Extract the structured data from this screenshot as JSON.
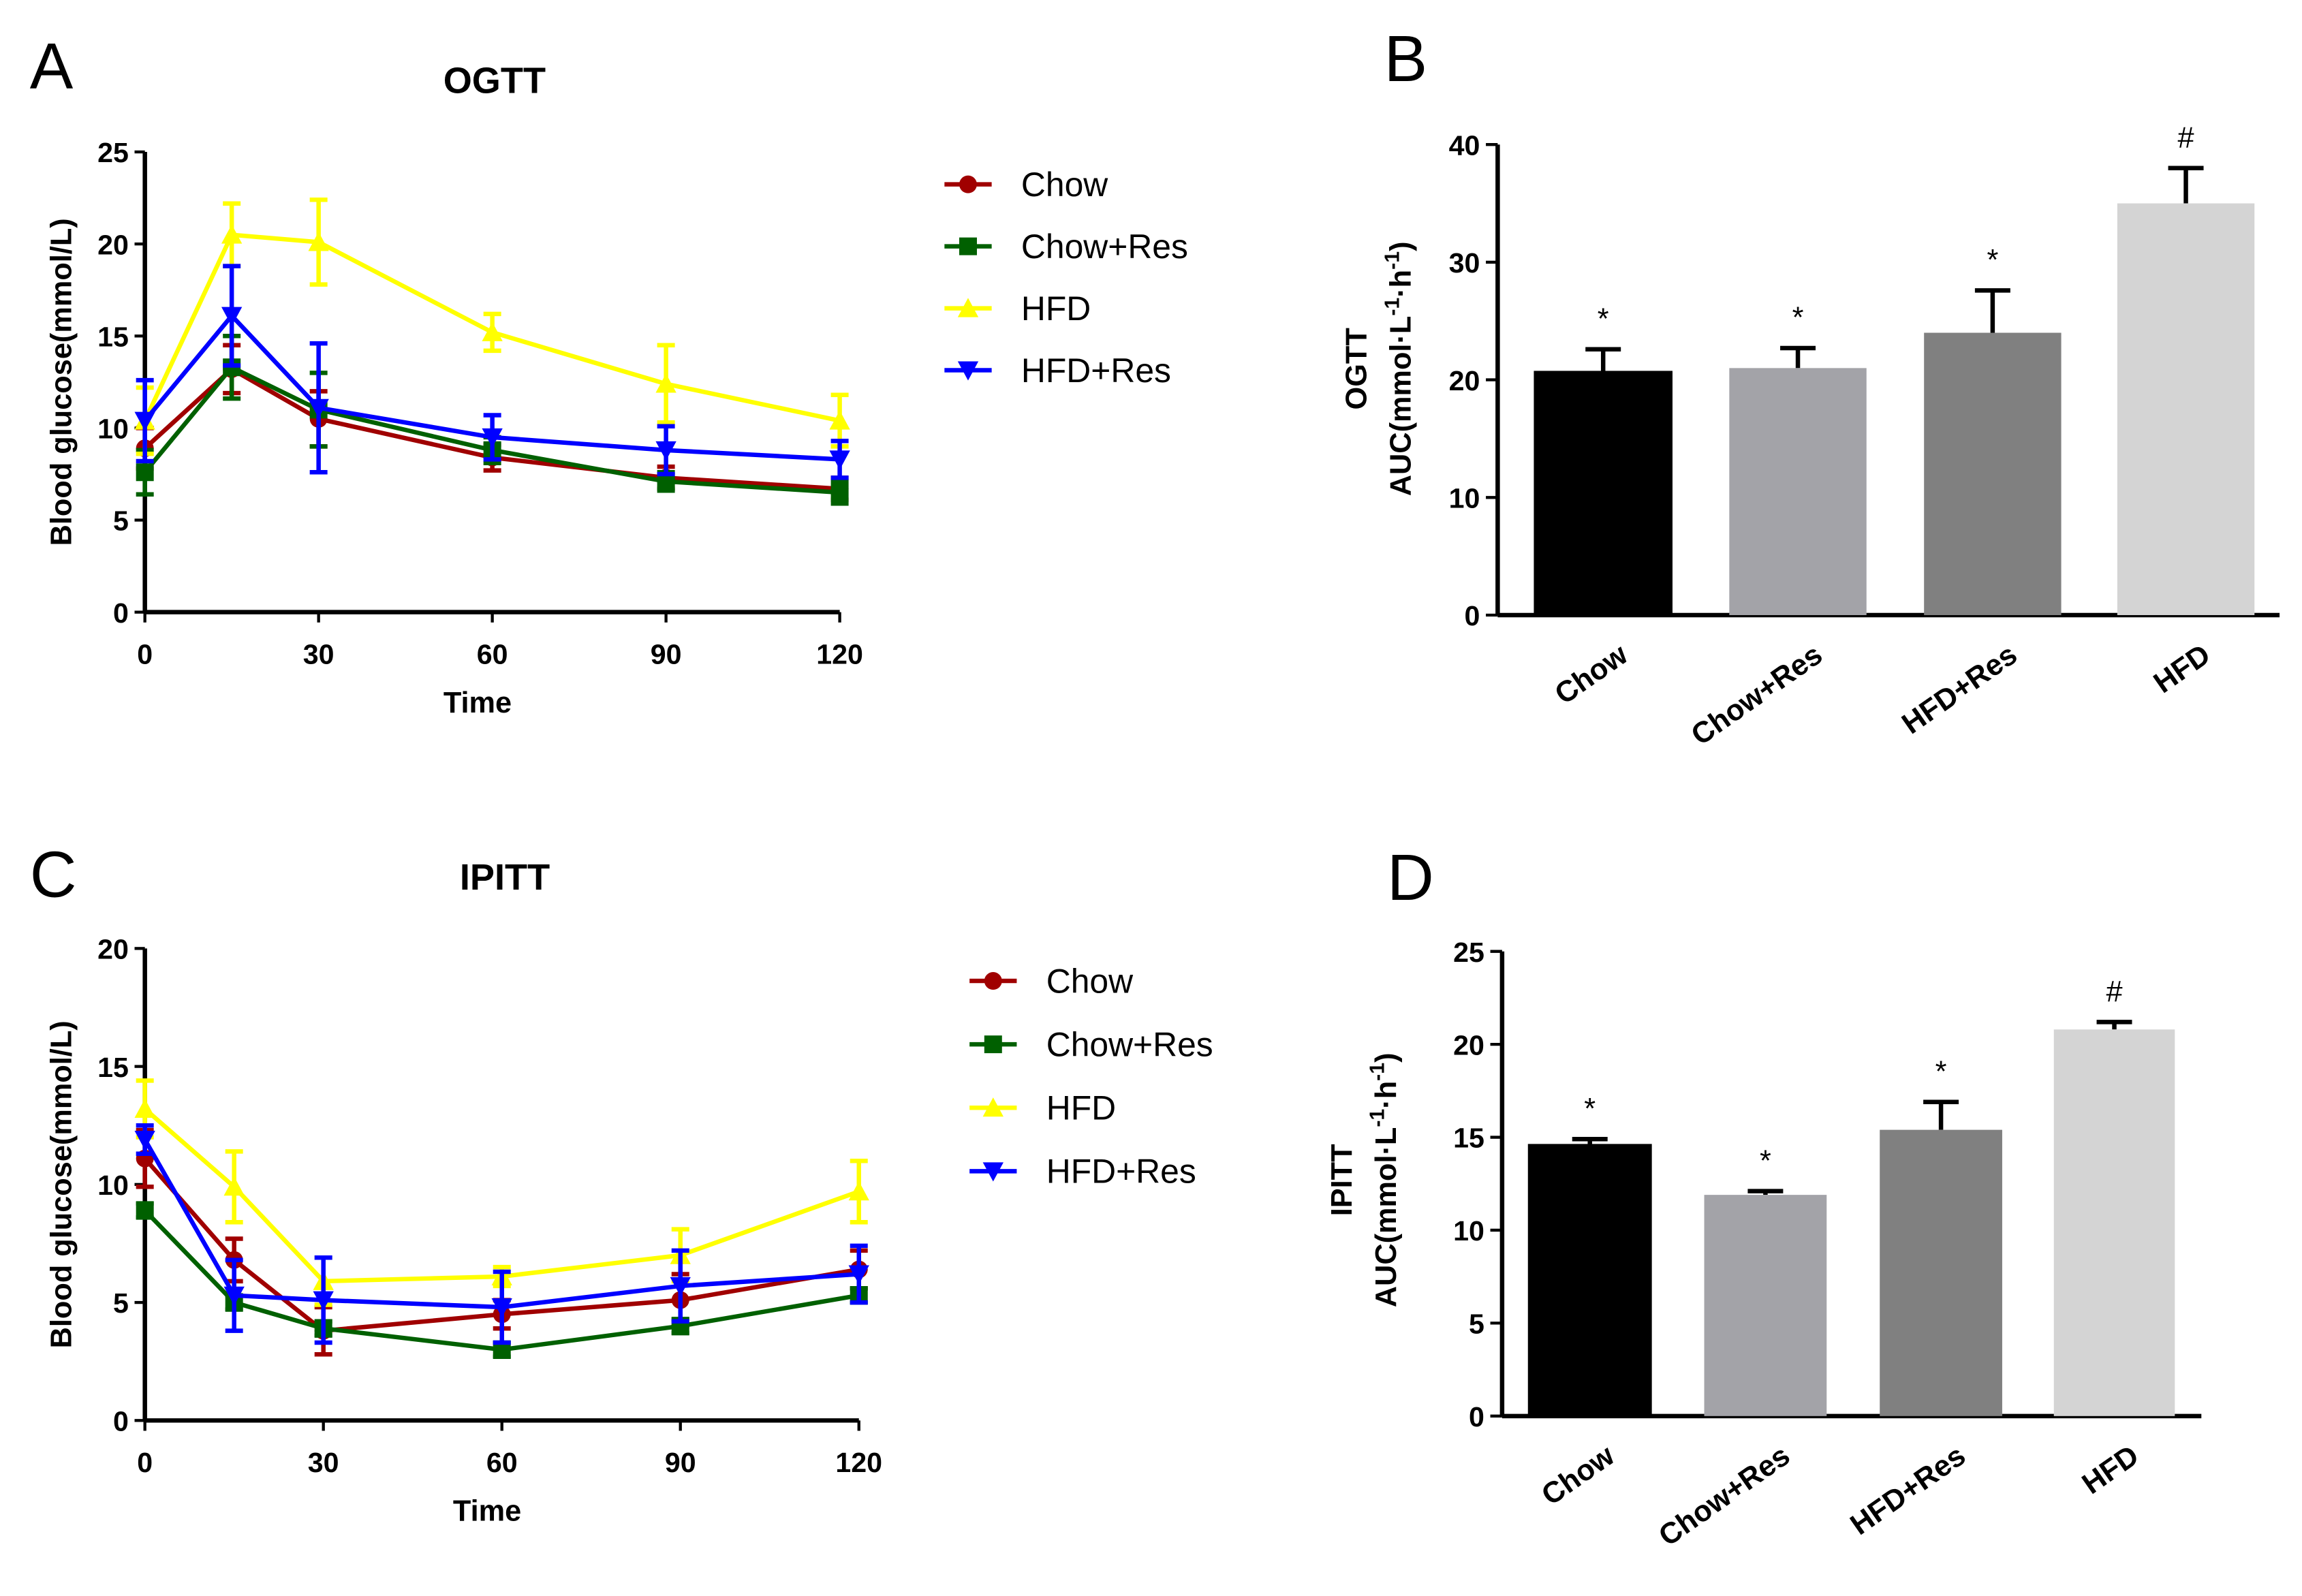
{
  "chart_data": [
    {
      "panel": "A",
      "type": "line",
      "title": "OGTT",
      "xlabel": "Time",
      "ylabel": "Blood glucose(mmol/L)",
      "x": [
        0,
        15,
        30,
        60,
        90,
        120
      ],
      "xticks": [
        0,
        30,
        60,
        90,
        120
      ],
      "yticks": [
        0,
        5,
        10,
        15,
        20,
        25
      ],
      "ylim": [
        0,
        25
      ],
      "xlim": [
        0,
        120
      ],
      "legend_position": "right",
      "series": [
        {
          "name": "Chow",
          "color": "#a00000",
          "marker": "circle",
          "values": [
            8.9,
            13.2,
            10.5,
            8.4,
            7.3,
            6.7
          ],
          "errors": [
            1.1,
            1.3,
            1.5,
            0.7,
            0.6,
            0.6
          ]
        },
        {
          "name": "Chow+Res",
          "color": "#006000",
          "marker": "square",
          "values": [
            7.6,
            13.3,
            11.0,
            8.8,
            7.1,
            6.5
          ],
          "errors": [
            1.2,
            1.7,
            2.0,
            0.7,
            0.5,
            0.6
          ]
        },
        {
          "name": "HFD",
          "color": "#ffff00",
          "marker": "triangle-up",
          "values": [
            10.4,
            20.5,
            20.1,
            15.2,
            12.4,
            10.4
          ],
          "errors": [
            1.8,
            1.7,
            2.3,
            1.0,
            2.1,
            1.4
          ]
        },
        {
          "name": "HFD+Res",
          "color": "#0000ff",
          "marker": "triangle-down",
          "values": [
            10.4,
            16.1,
            11.1,
            9.5,
            8.8,
            8.3
          ],
          "errors": [
            2.2,
            2.7,
            3.5,
            1.2,
            1.3,
            1.0
          ]
        }
      ]
    },
    {
      "panel": "B",
      "type": "bar",
      "title": "OGTT",
      "ylabel": "AUC(mmol·L-1·h-1)",
      "ylabel_main": "AUC(mmol·L",
      "ylabel_sup1": "-1",
      "ylabel_mid": "·h",
      "ylabel_sup2": "-1",
      "ylabel_end": ")",
      "categories": [
        "Chow",
        "Chow+Res",
        "HFD+Res",
        "HFD"
      ],
      "values": [
        20.7,
        21.0,
        24.0,
        35.0
      ],
      "errors": [
        1.9,
        1.7,
        3.6,
        3.0
      ],
      "annotations": [
        "*",
        "*",
        "*",
        "#"
      ],
      "colors": [
        "#000000",
        "#a3a3a8",
        "#808080",
        "#d4d4d4"
      ],
      "yticks": [
        0,
        10,
        20,
        30,
        40
      ],
      "ylim": [
        0,
        40
      ]
    },
    {
      "panel": "C",
      "type": "line",
      "title": "IPITT",
      "xlabel": "Time",
      "ylabel": "Blood glucose(mmol/L)",
      "x": [
        0,
        15,
        30,
        60,
        90,
        120
      ],
      "xticks": [
        0,
        30,
        60,
        90,
        120
      ],
      "yticks": [
        0,
        5,
        10,
        15,
        20
      ],
      "ylim": [
        0,
        20
      ],
      "xlim": [
        0,
        120
      ],
      "legend_position": "right",
      "series": [
        {
          "name": "Chow",
          "color": "#a00000",
          "marker": "circle",
          "values": [
            11.1,
            6.8,
            3.8,
            4.5,
            5.1,
            6.4
          ],
          "errors": [
            1.2,
            0.9,
            1.0,
            0.6,
            1.1,
            0.8
          ]
        },
        {
          "name": "Chow+Res",
          "color": "#006000",
          "marker": "square",
          "values": [
            8.9,
            5.0,
            3.9,
            3.0,
            4.0,
            5.3
          ],
          "errors": [
            0.3,
            0.3,
            0.3,
            0.3,
            0.3,
            0.3
          ]
        },
        {
          "name": "HFD",
          "color": "#ffff00",
          "marker": "triangle-up",
          "values": [
            13.2,
            9.9,
            5.9,
            6.1,
            7.0,
            9.7
          ],
          "errors": [
            1.2,
            1.5,
            1.0,
            0.4,
            1.1,
            1.3
          ]
        },
        {
          "name": "HFD+Res",
          "color": "#0000ff",
          "marker": "triangle-down",
          "values": [
            11.9,
            5.3,
            5.1,
            4.8,
            5.7,
            6.2
          ],
          "errors": [
            0.6,
            1.5,
            1.8,
            1.5,
            1.5,
            1.2
          ]
        }
      ]
    },
    {
      "panel": "D",
      "type": "bar",
      "title": "IPITT",
      "ylabel": "AUC(mmol·L-1·h-1)",
      "ylabel_main": "AUC(mmol·L",
      "ylabel_sup1": "-1",
      "ylabel_mid": "·h",
      "ylabel_sup2": "-1",
      "ylabel_end": ")",
      "categories": [
        "Chow",
        "Chow+Res",
        "HFD+Res",
        "HFD"
      ],
      "values": [
        14.6,
        11.9,
        15.4,
        20.8
      ],
      "errors": [
        0.3,
        0.2,
        1.5,
        0.4
      ],
      "annotations": [
        "*",
        "*",
        "*",
        "#"
      ],
      "colors": [
        "#000000",
        "#a3a3a8",
        "#808080",
        "#d4d4d4"
      ],
      "yticks": [
        0,
        5,
        10,
        15,
        20,
        25
      ],
      "ylim": [
        0,
        25
      ]
    }
  ]
}
